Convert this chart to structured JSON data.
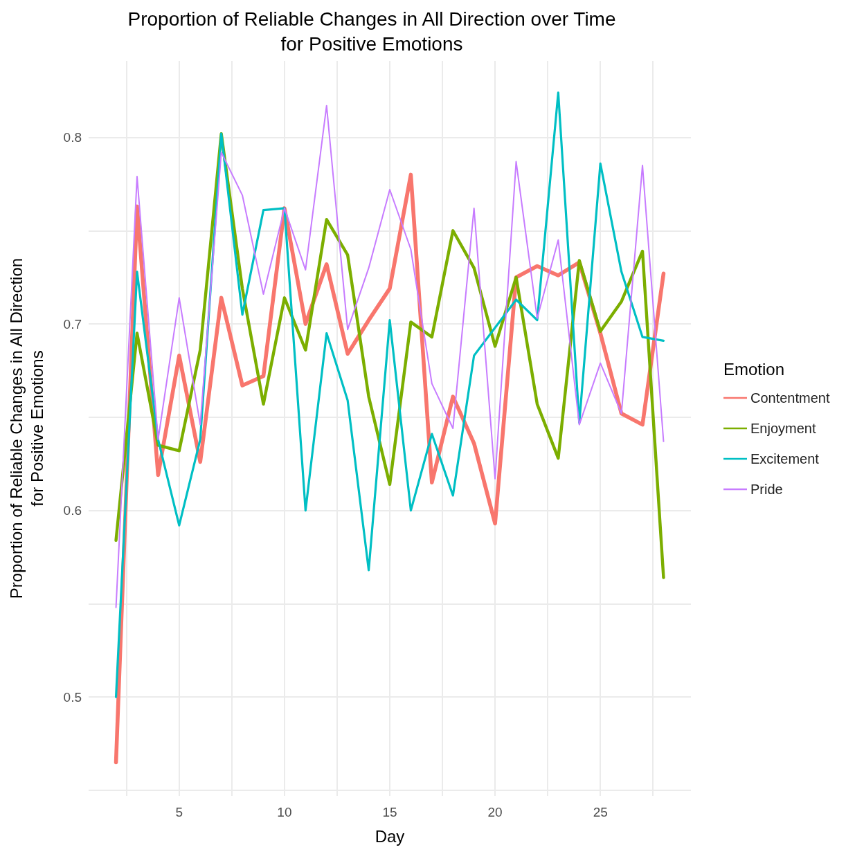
{
  "chart_data": {
    "type": "line",
    "title": "Proportion of Reliable Changes in All Direction over Time\nfor Positive Emotions",
    "xlabel": "Day",
    "ylabel": "Proportion of Reliable Changes in All Direction\nfor Positive Emotions",
    "legend_title": "Emotion",
    "legend": "right",
    "grid": true,
    "marker": "none",
    "line_style": "solid",
    "x": [
      2,
      3,
      4,
      5,
      6,
      7,
      8,
      9,
      10,
      11,
      12,
      13,
      14,
      15,
      16,
      17,
      18,
      19,
      20,
      21,
      22,
      23,
      24,
      25,
      26,
      27,
      28
    ],
    "xlim": [
      0.7,
      29.3
    ],
    "xticks": [
      {
        "value": 2.5,
        "label": null
      },
      5,
      {
        "value": 7.5,
        "label": null
      },
      10,
      {
        "value": 12.5,
        "label": null
      },
      15,
      {
        "value": 17.5,
        "label": null
      },
      20,
      {
        "value": 22.5,
        "label": null
      },
      25,
      {
        "value": 27.5,
        "label": null
      }
    ],
    "ylim": [
      0.447,
      0.841
    ],
    "yticks": [
      {
        "value": 0.45,
        "label": null
      },
      0.5,
      {
        "value": 0.55,
        "label": null
      },
      0.6,
      {
        "value": 0.65,
        "label": null
      },
      0.7,
      {
        "value": 0.75,
        "label": null
      },
      0.8
    ],
    "series": [
      {
        "name": "Contentment",
        "color": "#f8766d",
        "values": [
          0.465,
          0.763,
          0.619,
          0.683,
          0.626,
          0.714,
          0.667,
          0.672,
          0.762,
          0.7,
          0.732,
          0.684,
          0.702,
          0.719,
          0.78,
          0.615,
          0.661,
          0.636,
          0.593,
          0.725,
          0.731,
          0.726,
          0.733,
          0.695,
          0.652,
          0.646,
          0.727
        ]
      },
      {
        "name": "Enjoyment",
        "color": "#7cae00",
        "values": [
          0.584,
          0.695,
          0.635,
          0.632,
          0.686,
          0.802,
          0.719,
          0.657,
          0.714,
          0.686,
          0.756,
          0.737,
          0.661,
          0.614,
          0.701,
          0.693,
          0.75,
          0.73,
          0.688,
          0.725,
          0.657,
          0.628,
          0.734,
          0.696,
          0.712,
          0.739,
          0.564
        ]
      },
      {
        "name": "Excitement",
        "color": "#00bfc4",
        "values": [
          0.5,
          0.728,
          0.638,
          0.592,
          0.638,
          0.802,
          0.705,
          0.761,
          0.762,
          0.6,
          0.695,
          0.659,
          0.568,
          0.702,
          0.6,
          0.641,
          0.608,
          0.683,
          0.698,
          0.713,
          0.702,
          0.824,
          0.647,
          0.786,
          0.728,
          0.693,
          0.691
        ]
      },
      {
        "name": "Pride",
        "color": "#c77cff",
        "values": [
          0.548,
          0.779,
          0.638,
          0.714,
          0.646,
          0.792,
          0.769,
          0.716,
          0.762,
          0.729,
          0.817,
          0.697,
          0.73,
          0.772,
          0.74,
          0.668,
          0.644,
          0.762,
          0.617,
          0.787,
          0.703,
          0.745,
          0.646,
          0.679,
          0.652,
          0.785,
          0.637
        ]
      }
    ]
  }
}
